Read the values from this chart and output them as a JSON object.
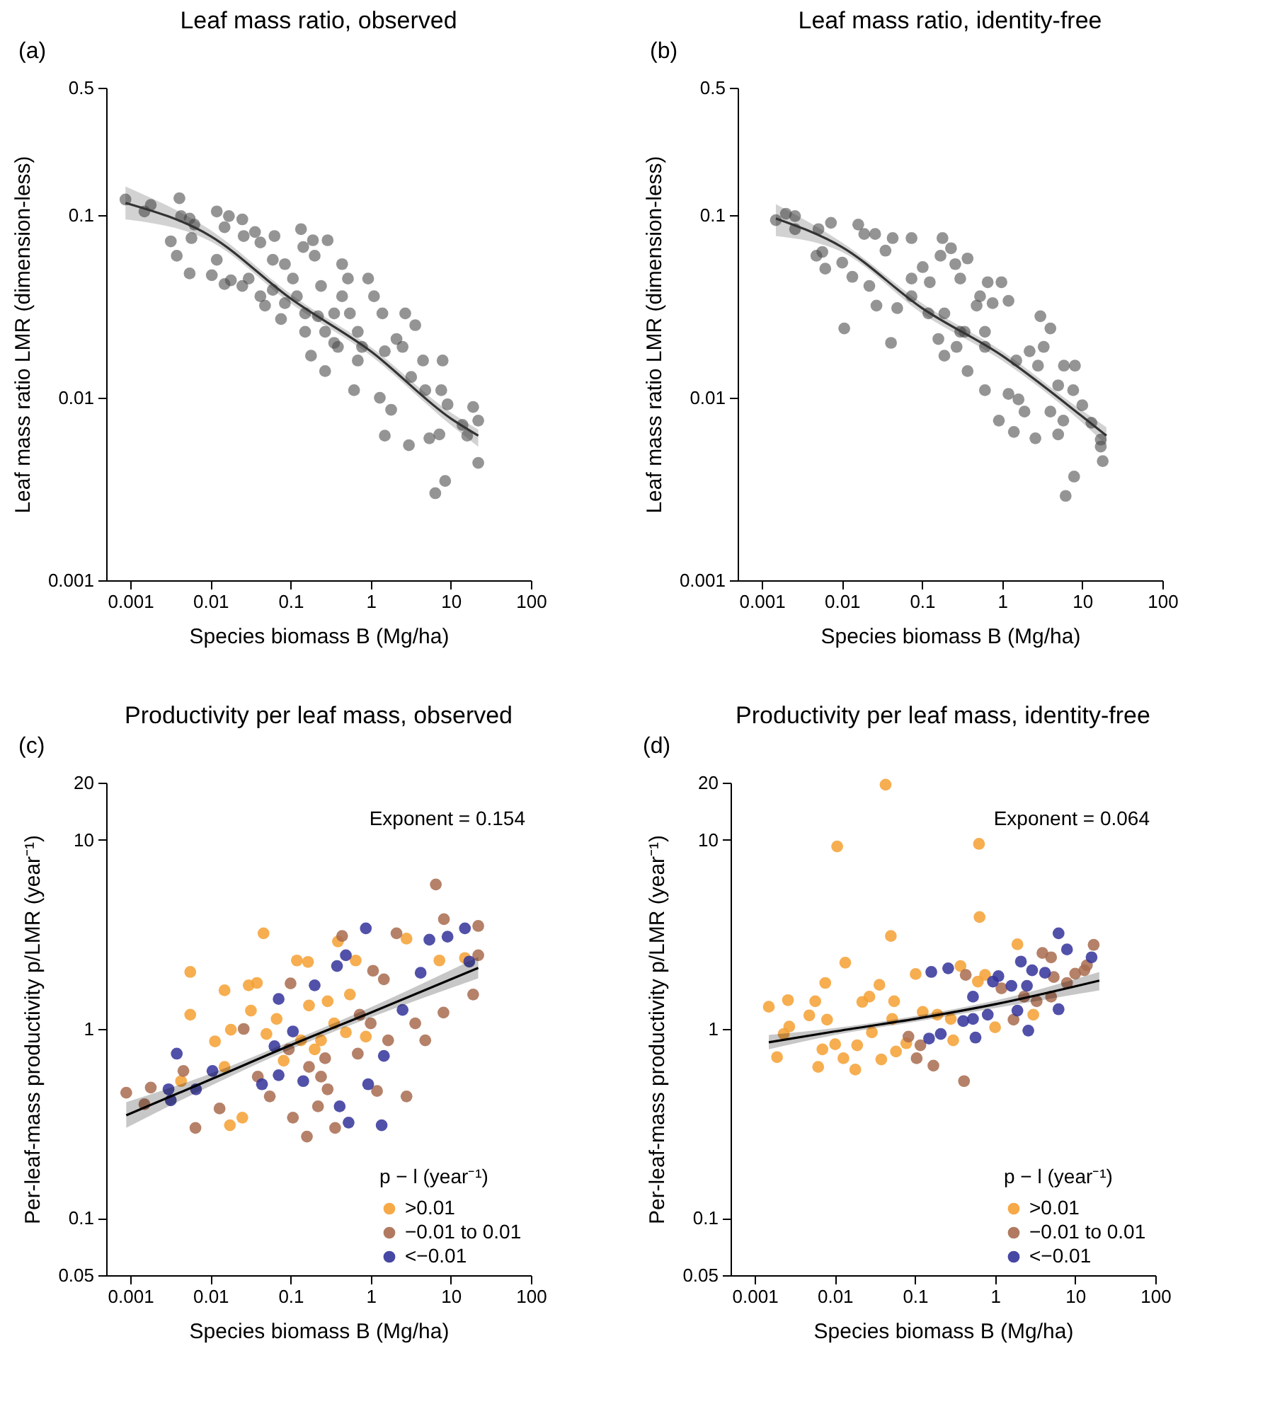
{
  "chart_data": [
    {
      "type": "scatter",
      "title": "Leaf mass ratio, observed",
      "xlabel": "Species biomass B (Mg/ha)",
      "ylabel": "Leaf mass ratio LMR (dimension-less)",
      "annotations": [
        "(a)"
      ],
      "log": "xy",
      "xlim": [
        0.0005,
        100
      ],
      "xticks": [
        0.001,
        0.01,
        0.1,
        1,
        10,
        100
      ],
      "ylim": [
        0.001,
        0.5
      ],
      "yticks": [
        0.001,
        0.01,
        0.1,
        0.5
      ],
      "series": [
        {
          "marker": "circle",
          "color": "#4d4d4d",
          "x": [
            0.00087,
            0.0015,
            0.0018,
            0.0041,
            0.0032,
            0.0038,
            0.0043,
            0.0055,
            0.0058,
            0.0055,
            0.0063,
            0.012,
            0.0104,
            0.012,
            0.015,
            0.017,
            0.015,
            0.018,
            0.025,
            0.026,
            0.025,
            0.03,
            0.036,
            0.042,
            0.048,
            0.063,
            0.06,
            0.076,
            0.085,
            0.107,
            0.135,
            0.144,
            0.19,
            0.2,
            0.29,
            0.12,
            0.152,
            0.18,
            0.22,
            0.27,
            0.35,
            0.44,
            0.52,
            0.55,
            0.62,
            0.69,
            0.78,
            0.93,
            1.1,
            1.3,
            1.4,
            1.5,
            1.5,
            1.8,
            2.1,
            2.5,
            2.7,
            3.0,
            3.6,
            3.2,
            4.5,
            4.8,
            5.4,
            6.4,
            7.2,
            7.9,
            7.6,
            8.5,
            9.1,
            14,
            16,
            19,
            22,
            22,
            0.085,
            0.152,
            0.27,
            0.39,
            0.69,
            0.24,
            0.35,
            0.06,
            0.042,
            0.44
          ],
          "values": [
            0.122,
            0.105,
            0.114,
            0.124,
            0.072,
            0.06,
            0.099,
            0.096,
            0.075,
            0.048,
            0.089,
            0.105,
            0.047,
            0.057,
            0.086,
            0.099,
            0.042,
            0.044,
            0.095,
            0.077,
            0.041,
            0.045,
            0.081,
            0.071,
            0.032,
            0.077,
            0.057,
            0.027,
            0.054,
            0.045,
            0.084,
            0.067,
            0.073,
            0.06,
            0.073,
            0.036,
            0.023,
            0.017,
            0.028,
            0.014,
            0.02,
            0.036,
            0.045,
            0.029,
            0.011,
            0.023,
            0.019,
            0.045,
            0.036,
            0.01,
            0.029,
            0.018,
            0.0062,
            0.0086,
            0.021,
            0.019,
            0.029,
            0.0055,
            0.025,
            0.013,
            0.016,
            0.011,
            0.006,
            0.003,
            0.0063,
            0.016,
            0.011,
            0.0035,
            0.0092,
            0.0071,
            0.0062,
            0.0089,
            0.0044,
            0.0075,
            0.033,
            0.029,
            0.023,
            0.019,
            0.016,
            0.041,
            0.029,
            0.039,
            0.036,
            0.054
          ]
        },
        {
          "type": "line",
          "color": "#333333",
          "x": [
            0.00087,
            0.01,
            0.1,
            1,
            10,
            22
          ],
          "values": [
            0.117,
            0.077,
            0.035,
            0.018,
            0.0077,
            0.0062
          ],
          "lower": [
            0.095,
            0.072,
            0.033,
            0.017,
            0.0071,
            0.0054
          ],
          "upper": [
            0.144,
            0.083,
            0.037,
            0.019,
            0.0083,
            0.0067
          ]
        }
      ]
    },
    {
      "type": "scatter",
      "title": "Leaf mass ratio, identity-free",
      "xlabel": "Species biomass B (Mg/ha)",
      "ylabel": "Leaf mass ratio LMR (dimension-less)",
      "annotations": [
        "(b)"
      ],
      "log": "xy",
      "xlim": [
        0.0005,
        100
      ],
      "xticks": [
        0.001,
        0.01,
        0.1,
        1,
        10,
        100
      ],
      "ylim": [
        0.001,
        0.5
      ],
      "yticks": [
        0.001,
        0.01,
        0.1,
        0.5
      ],
      "series": [
        {
          "marker": "circle",
          "color": "#4d4d4d",
          "x": [
            0.0015,
            0.002,
            0.0026,
            0.0026,
            0.0048,
            0.0057,
            0.0051,
            0.0073,
            0.0062,
            0.0101,
            0.0107,
            0.0135,
            0.016,
            0.019,
            0.026,
            0.022,
            0.027,
            0.035,
            0.041,
            0.043,
            0.074,
            0.049,
            0.074,
            0.102,
            0.125,
            0.18,
            0.23,
            0.17,
            0.19,
            0.26,
            0.16,
            0.37,
            0.3,
            0.53,
            0.66,
            0.98,
            0.76,
            1.2,
            0.61,
            0.3,
            0.37,
            0.61,
            0.91,
            1.4,
            1.2,
            1.6,
            1.9,
            1.5,
            2.2,
            2.6,
            3.0,
            2.8,
            3.3,
            4.0,
            4.0,
            5.0,
            5.9,
            5.0,
            5.8,
            6.2,
            7.9,
            8.1,
            7.7,
            10,
            13,
            17,
            17,
            18,
            0.12,
            0.19,
            0.34,
            0.27,
            0.61,
            0.074,
            0.48
          ],
          "values": [
            0.094,
            0.102,
            0.099,
            0.084,
            0.06,
            0.063,
            0.084,
            0.091,
            0.051,
            0.055,
            0.024,
            0.046,
            0.089,
            0.079,
            0.079,
            0.041,
            0.032,
            0.064,
            0.02,
            0.075,
            0.075,
            0.031,
            0.045,
            0.052,
            0.043,
            0.075,
            0.066,
            0.06,
            0.017,
            0.054,
            0.021,
            0.058,
            0.045,
            0.036,
            0.043,
            0.043,
            0.033,
            0.034,
            0.023,
            0.023,
            0.014,
            0.011,
            0.0075,
            0.0065,
            0.0105,
            0.0098,
            0.0084,
            0.016,
            0.018,
            0.006,
            0.028,
            0.015,
            0.019,
            0.024,
            0.0084,
            0.0117,
            0.015,
            0.0063,
            0.0075,
            0.0029,
            0.0037,
            0.015,
            0.011,
            0.0091,
            0.0073,
            0.0059,
            0.0054,
            0.0045,
            0.029,
            0.029,
            0.023,
            0.019,
            0.019,
            0.036,
            0.032
          ]
        },
        {
          "type": "line",
          "color": "#333333",
          "x": [
            0.0015,
            0.01,
            0.1,
            1,
            10,
            20
          ],
          "values": [
            0.096,
            0.067,
            0.031,
            0.017,
            0.0079,
            0.0062
          ],
          "lower": [
            0.077,
            0.063,
            0.029,
            0.016,
            0.0073,
            0.0055
          ],
          "upper": [
            0.115,
            0.071,
            0.033,
            0.018,
            0.0085,
            0.0069
          ]
        }
      ]
    },
    {
      "type": "scatter",
      "title": "Productivity per leaf mass, observed",
      "xlabel": "Species biomass B (Mg/ha)",
      "ylabel": "Per-leaf-mass productivity p/LMR (year⁻¹)",
      "annotations": [
        "(c)",
        "Exponent = 0.154"
      ],
      "legend_title": "p − l (year⁻¹)",
      "legend": "bottom right",
      "log": "xy",
      "xlim": [
        0.0005,
        100
      ],
      "xticks": [
        0.001,
        0.01,
        0.1,
        1,
        10,
        100
      ],
      "ylim": [
        0.05,
        20
      ],
      "yticks": [
        0.05,
        0.1,
        1,
        10,
        20
      ],
      "series": [
        {
          "marker": "circle",
          "name": ">0.01",
          "color": "#f5a033",
          "x": [
            0.0043,
            0.0056,
            0.0056,
            0.0114,
            0.015,
            0.015,
            0.0175,
            0.018,
            0.025,
            0.03,
            0.032,
            0.038,
            0.046,
            0.05,
            0.082,
            0.12,
            0.165,
            0.17,
            0.2,
            0.29,
            0.39,
            0.49,
            0.55,
            0.65,
            2.8,
            7.2,
            15,
            0.135,
            0.35,
            0.87,
            0.24,
            0.067
          ],
          "values": [
            0.53,
            2.0,
            1.19,
            0.86,
            0.63,
            1.6,
            0.31,
            0.99,
            0.34,
            1.7,
            1.25,
            1.75,
            3.2,
            0.94,
            0.68,
            2.3,
            2.26,
            1.33,
            0.78,
            1.4,
            2.9,
            0.96,
            1.52,
            2.3,
            3.0,
            2.3,
            2.37,
            0.87,
            1.07,
            0.91,
            0.87,
            1.13
          ]
        },
        {
          "marker": "circle",
          "name": "−0.01 to 0.01",
          "color": "#a86b4f",
          "x": [
            0.00089,
            0.0015,
            0.0018,
            0.0046,
            0.0065,
            0.013,
            0.026,
            0.039,
            0.055,
            0.1,
            0.107,
            0.16,
            0.22,
            0.24,
            0.29,
            0.36,
            0.44,
            0.73,
            1.07,
            1.2,
            1.46,
            1.65,
            2.1,
            2.8,
            3.6,
            4.8,
            6.5,
            8.2,
            8.1,
            19,
            22,
            22,
            0.095,
            0.17,
            0.27,
            0.69,
            1.0
          ],
          "values": [
            0.46,
            0.4,
            0.49,
            0.6,
            0.3,
            0.38,
            1.0,
            0.56,
            0.44,
            1.74,
            0.34,
            0.27,
            0.39,
            0.56,
            0.48,
            0.3,
            3.1,
            1.19,
            2.03,
            0.47,
            1.83,
            0.87,
            3.2,
            0.44,
            1.07,
            0.87,
            5.8,
            3.8,
            1.22,
            1.52,
            3.5,
            2.45,
            0.78,
            0.63,
            0.7,
            0.74,
            1.07
          ]
        },
        {
          "marker": "circle",
          "name": "<−0.01",
          "color": "#33339a",
          "x": [
            0.003,
            0.0032,
            0.0038,
            0.0066,
            0.0106,
            0.044,
            0.063,
            0.071,
            0.071,
            0.107,
            0.144,
            0.2,
            0.38,
            0.41,
            0.49,
            0.53,
            0.87,
            0.93,
            1.37,
            1.46,
            2.5,
            4.2,
            5.4,
            9.1,
            15,
            17
          ],
          "values": [
            0.48,
            0.42,
            0.74,
            0.48,
            0.6,
            0.51,
            0.81,
            1.44,
            0.57,
            0.97,
            0.53,
            1.7,
            2.15,
            0.39,
            2.45,
            0.32,
            3.4,
            0.51,
            0.31,
            0.72,
            1.26,
            1.98,
            2.96,
            3.07,
            3.4,
            2.27
          ]
        },
        {
          "type": "line",
          "color": "#000000",
          "x": [
            0.00089,
            0.01,
            0.1,
            1,
            22
          ],
          "values": [
            0.35,
            0.54,
            0.82,
            1.22,
            2.1
          ],
          "lower": [
            0.3,
            0.5,
            0.78,
            1.15,
            1.85
          ],
          "upper": [
            0.41,
            0.58,
            0.86,
            1.3,
            2.4
          ]
        }
      ]
    },
    {
      "type": "scatter",
      "title": "Productivity per leaf mass, identity-free",
      "xlabel": "Species biomass B (Mg/ha)",
      "ylabel": "Per-leaf-mass productivity p/LMR (year⁻¹)",
      "annotations": [
        "(d)",
        "Exponent = 0.064"
      ],
      "legend_title": "p − l (year⁻¹)",
      "legend": "bottom right",
      "log": "xy",
      "xlim": [
        0.0005,
        100
      ],
      "xticks": [
        0.001,
        0.01,
        0.1,
        1,
        10,
        100
      ],
      "ylim": [
        0.05,
        20
      ],
      "yticks": [
        0.05,
        0.1,
        1,
        10,
        20
      ],
      "series": [
        {
          "marker": "circle",
          "name": ">0.01",
          "color": "#f5a033",
          "x": [
            0.0015,
            0.0019,
            0.0023,
            0.0026,
            0.0027,
            0.0048,
            0.0057,
            0.0062,
            0.007,
            0.0076,
            0.008,
            0.0107,
            0.0101,
            0.0128,
            0.0135,
            0.018,
            0.019,
            0.022,
            0.027,
            0.029,
            0.036,
            0.038,
            0.043,
            0.05,
            0.052,
            0.055,
            0.058,
            0.078,
            0.102,
            0.125,
            0.19,
            0.28,
            0.3,
            0.37,
            0.61,
            0.63,
            0.64,
            0.75,
            1.0,
            1.9,
            3.0
          ],
          "values": [
            1.31,
            0.71,
            0.94,
            1.42,
            1.03,
            1.18,
            1.4,
            0.63,
            0.78,
            1.75,
            1.12,
            9.2,
            0.83,
            0.7,
            2.24,
            0.61,
            0.82,
            1.39,
            1.48,
            0.96,
            1.71,
            0.69,
            19.5,
            3.1,
            1.13,
            1.4,
            0.76,
            0.84,
            1.95,
            1.23,
            1.19,
            1.13,
            0.87,
            2.15,
            1.78,
            9.5,
            3.9,
            1.93,
            1.02,
            2.8,
            1.19
          ]
        },
        {
          "marker": "circle",
          "name": "−0.01 to 0.01",
          "color": "#a86b4f",
          "x": [
            0.083,
            0.105,
            0.117,
            0.17,
            0.41,
            0.43,
            1.2,
            1.7,
            2.3,
            3.3,
            3.9,
            5.0,
            5.0,
            5.4,
            7.9,
            10,
            13,
            14,
            17
          ],
          "values": [
            0.91,
            0.7,
            0.82,
            0.64,
            0.53,
            1.93,
            1.64,
            1.12,
            1.48,
            1.4,
            2.52,
            2.39,
            1.48,
            1.88,
            1.75,
            1.96,
            2.04,
            2.17,
            2.78
          ]
        },
        {
          "marker": "circle",
          "name": "<−0.01",
          "color": "#33339a",
          "x": [
            0.15,
            0.16,
            0.21,
            0.26,
            0.4,
            0.53,
            0.53,
            0.57,
            0.81,
            0.94,
            1.1,
            1.6,
            1.9,
            2.1,
            2.5,
            2.6,
            2.9,
            4.2,
            6.2,
            6.2,
            7.9,
            16
          ],
          "values": [
            0.89,
            2.0,
            0.94,
            2.09,
            1.1,
            1.48,
            1.13,
            0.9,
            1.19,
            1.78,
            1.9,
            1.69,
            1.25,
            2.27,
            1.69,
            0.98,
            2.04,
            1.98,
            3.2,
            1.27,
            2.63,
            2.39
          ]
        },
        {
          "type": "line",
          "color": "#000000",
          "x": [
            0.0015,
            0.01,
            0.1,
            1,
            20
          ],
          "values": [
            0.85,
            0.97,
            1.13,
            1.35,
            1.8
          ],
          "lower": [
            0.78,
            0.93,
            1.09,
            1.29,
            1.6
          ],
          "upper": [
            0.93,
            1.01,
            1.17,
            1.41,
            2.0
          ]
        }
      ]
    }
  ]
}
